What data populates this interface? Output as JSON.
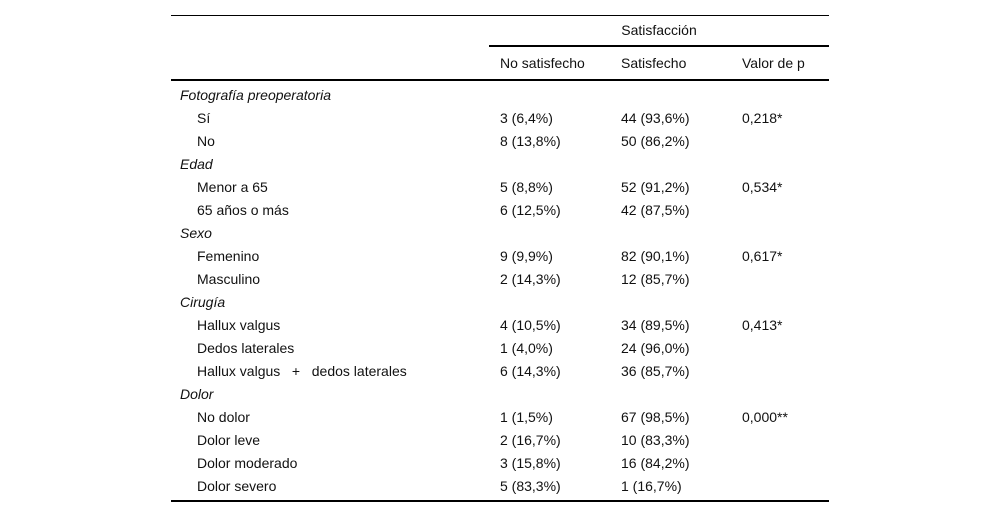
{
  "page": {
    "background": "#ffffff"
  },
  "colors": {
    "text": "#111111",
    "rule": "#000000",
    "background": "#ffffff"
  },
  "table": {
    "spanner": "Satisfacción",
    "columns": [
      "No satisfecho",
      "Satisfecho",
      "Valor de p"
    ],
    "groups": [
      {
        "label": "Fotografía preoperatoria",
        "rows": [
          {
            "label": "Sí",
            "no_satisfecho": "3 (6,4%)",
            "satisfecho": "44 (93,6%)",
            "p": "0,218*"
          },
          {
            "label": "No",
            "no_satisfecho": "8 (13,8%)",
            "satisfecho": "50 (86,2%)",
            "p": ""
          }
        ]
      },
      {
        "label": "Edad",
        "rows": [
          {
            "label": "Menor a 65",
            "no_satisfecho": "5 (8,8%)",
            "satisfecho": "52 (91,2%)",
            "p": "0,534*"
          },
          {
            "label": "65 años o más",
            "no_satisfecho": "6 (12,5%)",
            "satisfecho": "42 (87,5%)",
            "p": ""
          }
        ]
      },
      {
        "label": "Sexo",
        "rows": [
          {
            "label": "Femenino",
            "no_satisfecho": "9 (9,9%)",
            "satisfecho": "82 (90,1%)",
            "p": "0,617*"
          },
          {
            "label": "Masculino",
            "no_satisfecho": "2 (14,3%)",
            "satisfecho": "12 (85,7%)",
            "p": ""
          }
        ]
      },
      {
        "label": "Cirugía",
        "rows": [
          {
            "label": "Hallux valgus",
            "no_satisfecho": "4 (10,5%)",
            "satisfecho": "34 (89,5%)",
            "p": "0,413*"
          },
          {
            "label": "Dedos laterales",
            "no_satisfecho": "1 (4,0%)",
            "satisfecho": "24 (96,0%)",
            "p": ""
          },
          {
            "label": "Hallux valgus   +   dedos laterales",
            "no_satisfecho": "6 (14,3%)",
            "satisfecho": "36 (85,7%)",
            "p": ""
          }
        ]
      },
      {
        "label": "Dolor",
        "rows": [
          {
            "label": "No dolor",
            "no_satisfecho": "1 (1,5%)",
            "satisfecho": "67 (98,5%)",
            "p": "0,000**"
          },
          {
            "label": "Dolor leve",
            "no_satisfecho": "2 (16,7%)",
            "satisfecho": "10 (83,3%)",
            "p": ""
          },
          {
            "label": "Dolor moderado",
            "no_satisfecho": "3 (15,8%)",
            "satisfecho": "16 (84,2%)",
            "p": ""
          },
          {
            "label": "Dolor severo",
            "no_satisfecho": "5 (83,3%)",
            "satisfecho": "1 (16,7%)",
            "p": ""
          }
        ]
      }
    ]
  }
}
